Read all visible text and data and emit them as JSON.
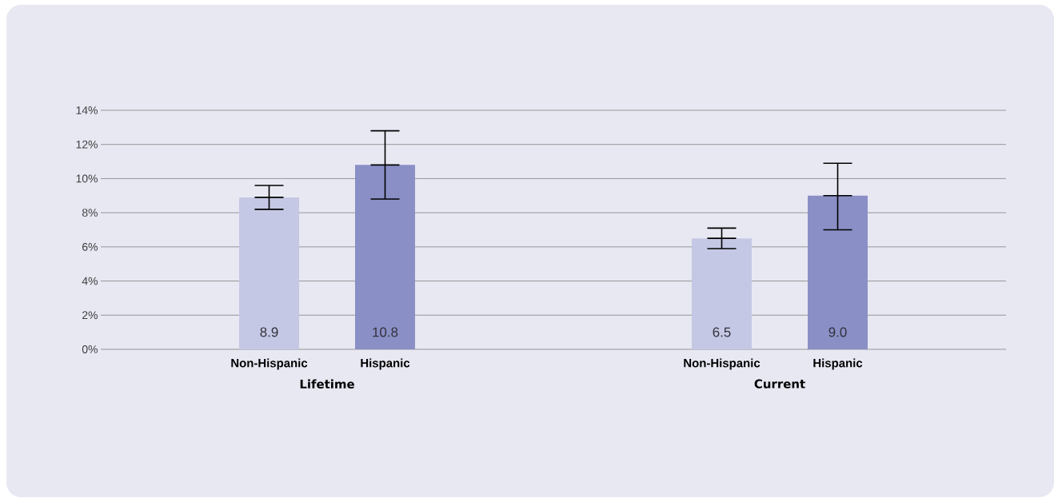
{
  "chart_data": {
    "type": "bar",
    "categories": [
      "Lifetime",
      "Current"
    ],
    "series": [
      {
        "name": "Non-Hispanic",
        "color": "#c5c8e4",
        "values": [
          8.9,
          6.5
        ],
        "value_labels": [
          "8.9",
          "6.5"
        ],
        "errors": [
          [
            8.2,
            9.6
          ],
          [
            5.9,
            7.1
          ]
        ]
      },
      {
        "name": "Hispanic",
        "color": "#8a8fc6",
        "values": [
          10.8,
          9.0
        ],
        "value_labels": [
          "10.8",
          "9.0"
        ],
        "errors": [
          [
            8.8,
            12.8
          ],
          [
            7.0,
            10.9
          ]
        ]
      }
    ],
    "ylim": [
      0,
      14
    ],
    "yticks": [
      {
        "value": 0,
        "label": "0%"
      },
      {
        "value": 2,
        "label": "2%"
      },
      {
        "value": 4,
        "label": "4%"
      },
      {
        "value": 6,
        "label": "6%"
      },
      {
        "value": 8,
        "label": "8%"
      },
      {
        "value": 10,
        "label": "10%"
      },
      {
        "value": 12,
        "label": "12%"
      },
      {
        "value": 14,
        "label": "14%"
      }
    ],
    "grid": "y"
  }
}
